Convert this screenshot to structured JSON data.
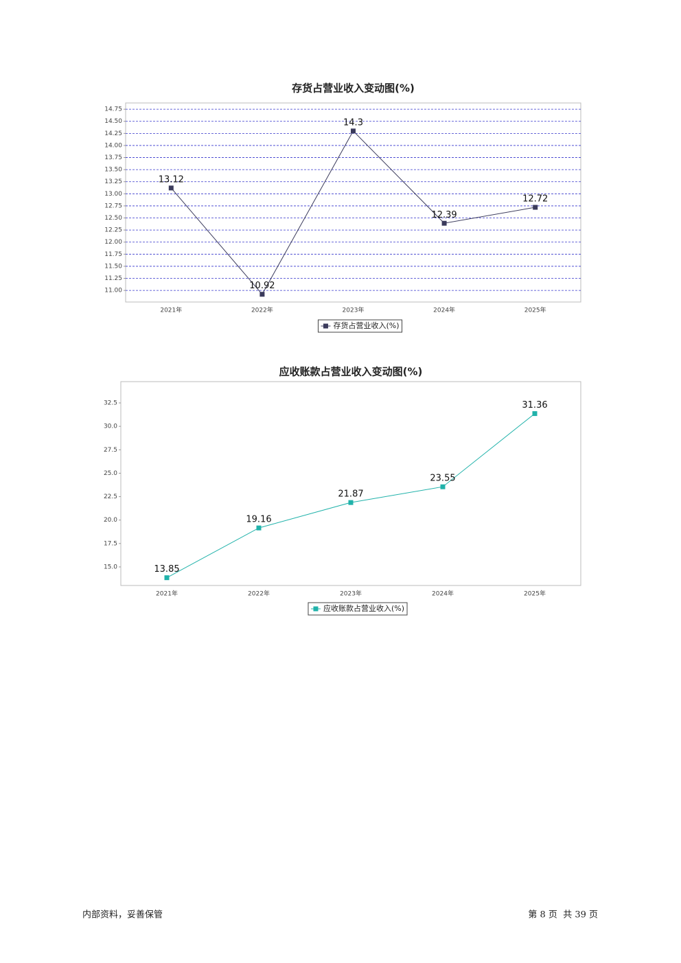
{
  "chart_data": [
    {
      "type": "line",
      "title": "存货占营业收入变动图(%)",
      "categories": [
        "2021年",
        "2022年",
        "2023年",
        "2024年",
        "2025年"
      ],
      "series": [
        {
          "name": "存货占营业收入(%)",
          "color": "#3b3b5c",
          "values": [
            13.12,
            10.92,
            14.3,
            12.39,
            12.72
          ]
        }
      ],
      "ylim": [
        10.76,
        14.88
      ],
      "yticks": [
        {
          "value": 11,
          "label": "11.00"
        },
        {
          "value": 11.25,
          "label": "11.25"
        },
        {
          "value": 11.5,
          "label": "11.50"
        },
        {
          "value": 11.75,
          "label": "11.75"
        },
        {
          "value": 12,
          "label": "12.00"
        },
        {
          "value": 12.25,
          "label": "12.25"
        },
        {
          "value": 12.5,
          "label": "12.50"
        },
        {
          "value": 12.75,
          "label": "12.75"
        },
        {
          "value": 13,
          "label": "13.00"
        },
        {
          "value": 13.25,
          "label": "13.25"
        },
        {
          "value": 13.5,
          "label": "13.50"
        },
        {
          "value": 13.75,
          "label": "13.75"
        },
        {
          "value": 14,
          "label": "14.00"
        },
        {
          "value": 14.25,
          "label": "14.25"
        },
        {
          "value": 14.5,
          "label": "14.50"
        },
        {
          "value": 14.75,
          "label": "14.75"
        }
      ],
      "grid": true
    },
    {
      "type": "line",
      "title": "应收账款占营业收入变动图(%)",
      "categories": [
        "2021年",
        "2022年",
        "2023年",
        "2024年",
        "2025年"
      ],
      "series": [
        {
          "name": "应收账款占营业收入(%)",
          "color": "#20b2aa",
          "values": [
            13.85,
            19.16,
            21.87,
            23.55,
            31.36
          ]
        }
      ],
      "ylim": [
        13.02,
        34.77
      ],
      "yticks": [
        {
          "value": 15,
          "label": "15.0"
        },
        {
          "value": 17.5,
          "label": "17.5"
        },
        {
          "value": 20,
          "label": "20.0"
        },
        {
          "value": 22.5,
          "label": "22.5"
        },
        {
          "value": 25,
          "label": "25.0"
        },
        {
          "value": 27.5,
          "label": "27.5"
        },
        {
          "value": 30,
          "label": "30.0"
        },
        {
          "value": 32.5,
          "label": "32.5"
        }
      ],
      "grid": false
    }
  ],
  "footer": {
    "left": "内部资料，妥善保管",
    "right": "第 8 页  共 39 页"
  }
}
